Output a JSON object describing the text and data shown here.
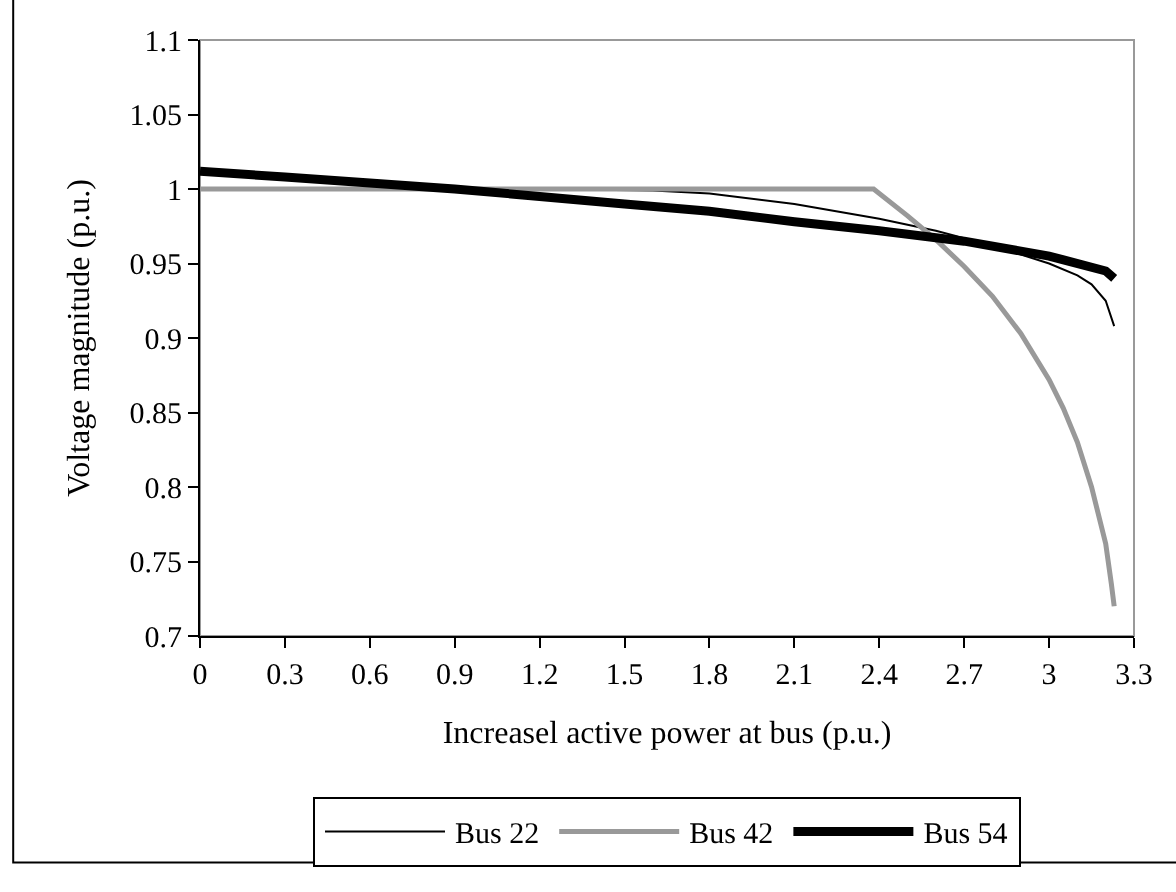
{
  "chart_data": {
    "type": "line",
    "xlabel": "Increasel active power at bus (p.u.)",
    "ylabel": "Voltage magnitude (p.u.)",
    "xlim": [
      0,
      3.3
    ],
    "xticks": [
      0,
      0.3,
      0.6,
      0.9,
      1.2,
      1.5,
      1.8,
      2.1,
      2.4,
      2.7,
      3,
      3.3
    ],
    "ylim": [
      0.7,
      1.1
    ],
    "yticks": [
      0.7,
      0.75,
      0.8,
      0.85,
      0.9,
      0.95,
      1,
      1.05,
      1.1
    ],
    "grid": false,
    "legend": "bottom",
    "marker": "none",
    "line_style": "solid",
    "series": [
      {
        "name": "Bus 22",
        "color": "#000000",
        "x": [
          0,
          0.6,
          1.2,
          1.6,
          1.8,
          2.1,
          2.4,
          2.6,
          2.8,
          3.0,
          3.1,
          3.15,
          3.2,
          3.23
        ],
        "values": [
          1.0,
          1.0,
          1.0,
          0.999,
          0.997,
          0.99,
          0.98,
          0.972,
          0.962,
          0.95,
          0.942,
          0.936,
          0.925,
          0.908
        ]
      },
      {
        "name": "Bus 42",
        "color": "#999999",
        "x": [
          0,
          1.2,
          2.38,
          2.5,
          2.6,
          2.7,
          2.8,
          2.9,
          3.0,
          3.05,
          3.1,
          3.15,
          3.2,
          3.22,
          3.23
        ],
        "values": [
          1.0,
          1.0,
          1.0,
          0.982,
          0.966,
          0.948,
          0.928,
          0.903,
          0.872,
          0.853,
          0.83,
          0.8,
          0.762,
          0.735,
          0.72
        ]
      },
      {
        "name": "Bus 54",
        "color": "#000000",
        "x": [
          0,
          0.3,
          0.6,
          0.9,
          1.2,
          1.5,
          1.8,
          2.1,
          2.4,
          2.7,
          3.0,
          3.2,
          3.23
        ],
        "values": [
          1.012,
          1.008,
          1.004,
          1.0,
          0.995,
          0.99,
          0.985,
          0.978,
          0.972,
          0.965,
          0.955,
          0.945,
          0.94
        ]
      }
    ]
  }
}
